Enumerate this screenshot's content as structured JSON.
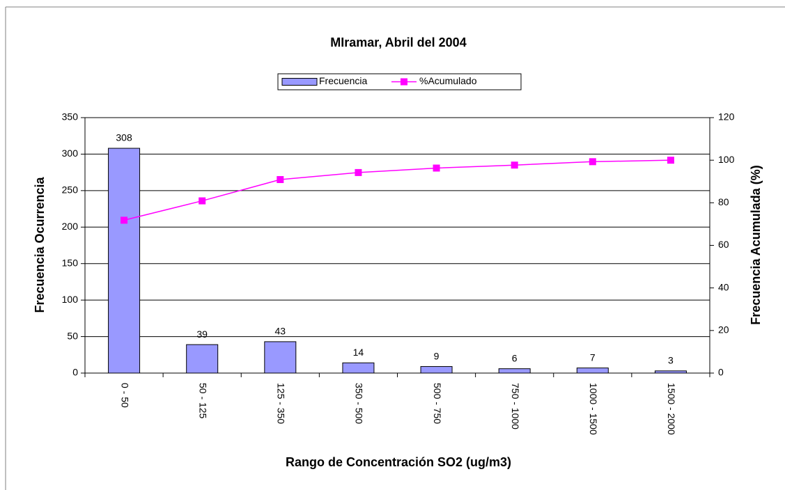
{
  "chart_data": {
    "type": "bar",
    "title": "MIramar, Abril del 2004",
    "x_label": "Rango de Concentración SO2 (ug/m3)",
    "y_label": "Frecuencia Ocurrencia",
    "y2_label": "Frecuencia Acumulada (%)",
    "categories": [
      "0 - 50",
      "50 - 125",
      "125 - 350",
      "350 - 500",
      "500 - 750",
      "750 - 1000",
      "1000 - 1500",
      "1500 - 2000"
    ],
    "series": [
      {
        "name": "Frecuencia",
        "type": "bar",
        "color": "#9999ff",
        "values": [
          308,
          39,
          43,
          14,
          9,
          6,
          7,
          3
        ]
      },
      {
        "name": "%Acumulado",
        "type": "line",
        "axis": "y2",
        "color": "#ff00ff",
        "values": [
          71.8,
          80.9,
          90.9,
          94.2,
          96.3,
          97.7,
          99.3,
          100
        ]
      }
    ],
    "ylim": [
      0,
      350
    ],
    "yticks": [
      0,
      50,
      100,
      150,
      200,
      250,
      300,
      350
    ],
    "y2lim": [
      0,
      120
    ],
    "y2ticks": [
      0,
      20,
      40,
      60,
      80,
      100,
      120
    ],
    "grid": true,
    "legend": "top"
  }
}
